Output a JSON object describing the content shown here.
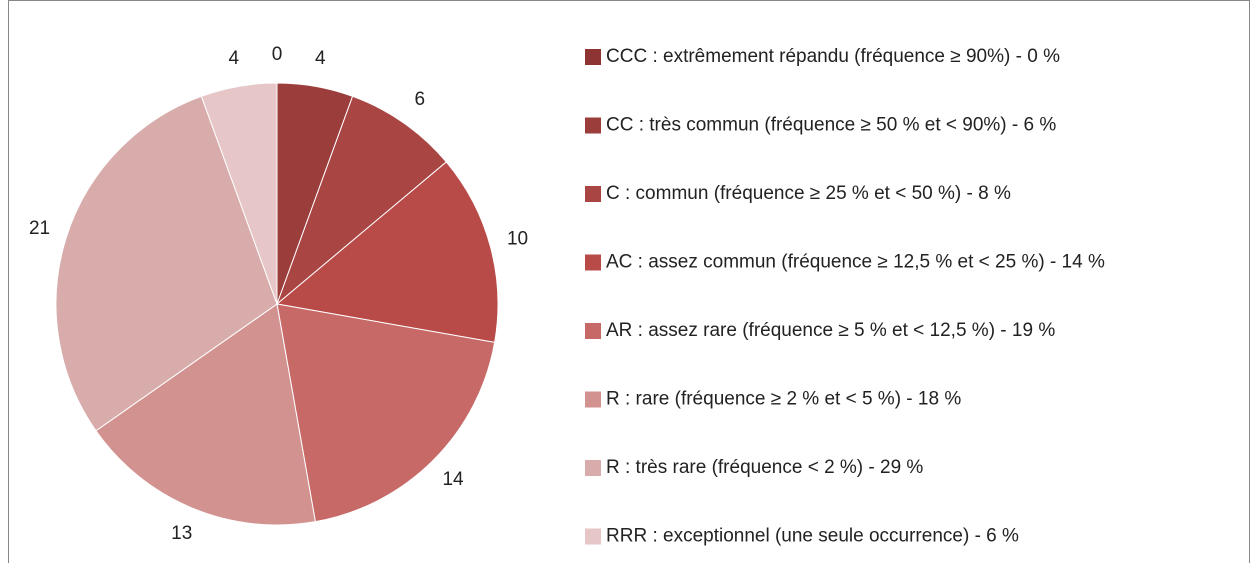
{
  "chart_data": {
    "type": "pie",
    "categories": [
      "CCC : extrêmement répandu (fréquence ≥ 90%) - 0 %",
      "CC : très commun (fréquence ≥ 50 % et < 90%) - 6 %",
      "C : commun (fréquence ≥ 25 % et < 50 %) - 8 %",
      "AC : assez commun (fréquence ≥ 12,5 % et < 25 %) - 14 %",
      "AR : assez rare (fréquence ≥ 5 % et < 12,5 %) - 19 %",
      "R : rare (fréquence ≥ 2 % et < 5 %) - 18 %",
      "R : très rare (fréquence < 2 %) - 29 %",
      "RRR : exceptionnel (une seule occurrence) - 6 %"
    ],
    "values": [
      0,
      4,
      6,
      10,
      14,
      13,
      21,
      4
    ],
    "colors": [
      "#8E3432",
      "#9B3D3B",
      "#A94543",
      "#B84A48",
      "#C66967",
      "#D19290",
      "#D9ACAC",
      "#E6C6C6"
    ],
    "legend": "right"
  }
}
